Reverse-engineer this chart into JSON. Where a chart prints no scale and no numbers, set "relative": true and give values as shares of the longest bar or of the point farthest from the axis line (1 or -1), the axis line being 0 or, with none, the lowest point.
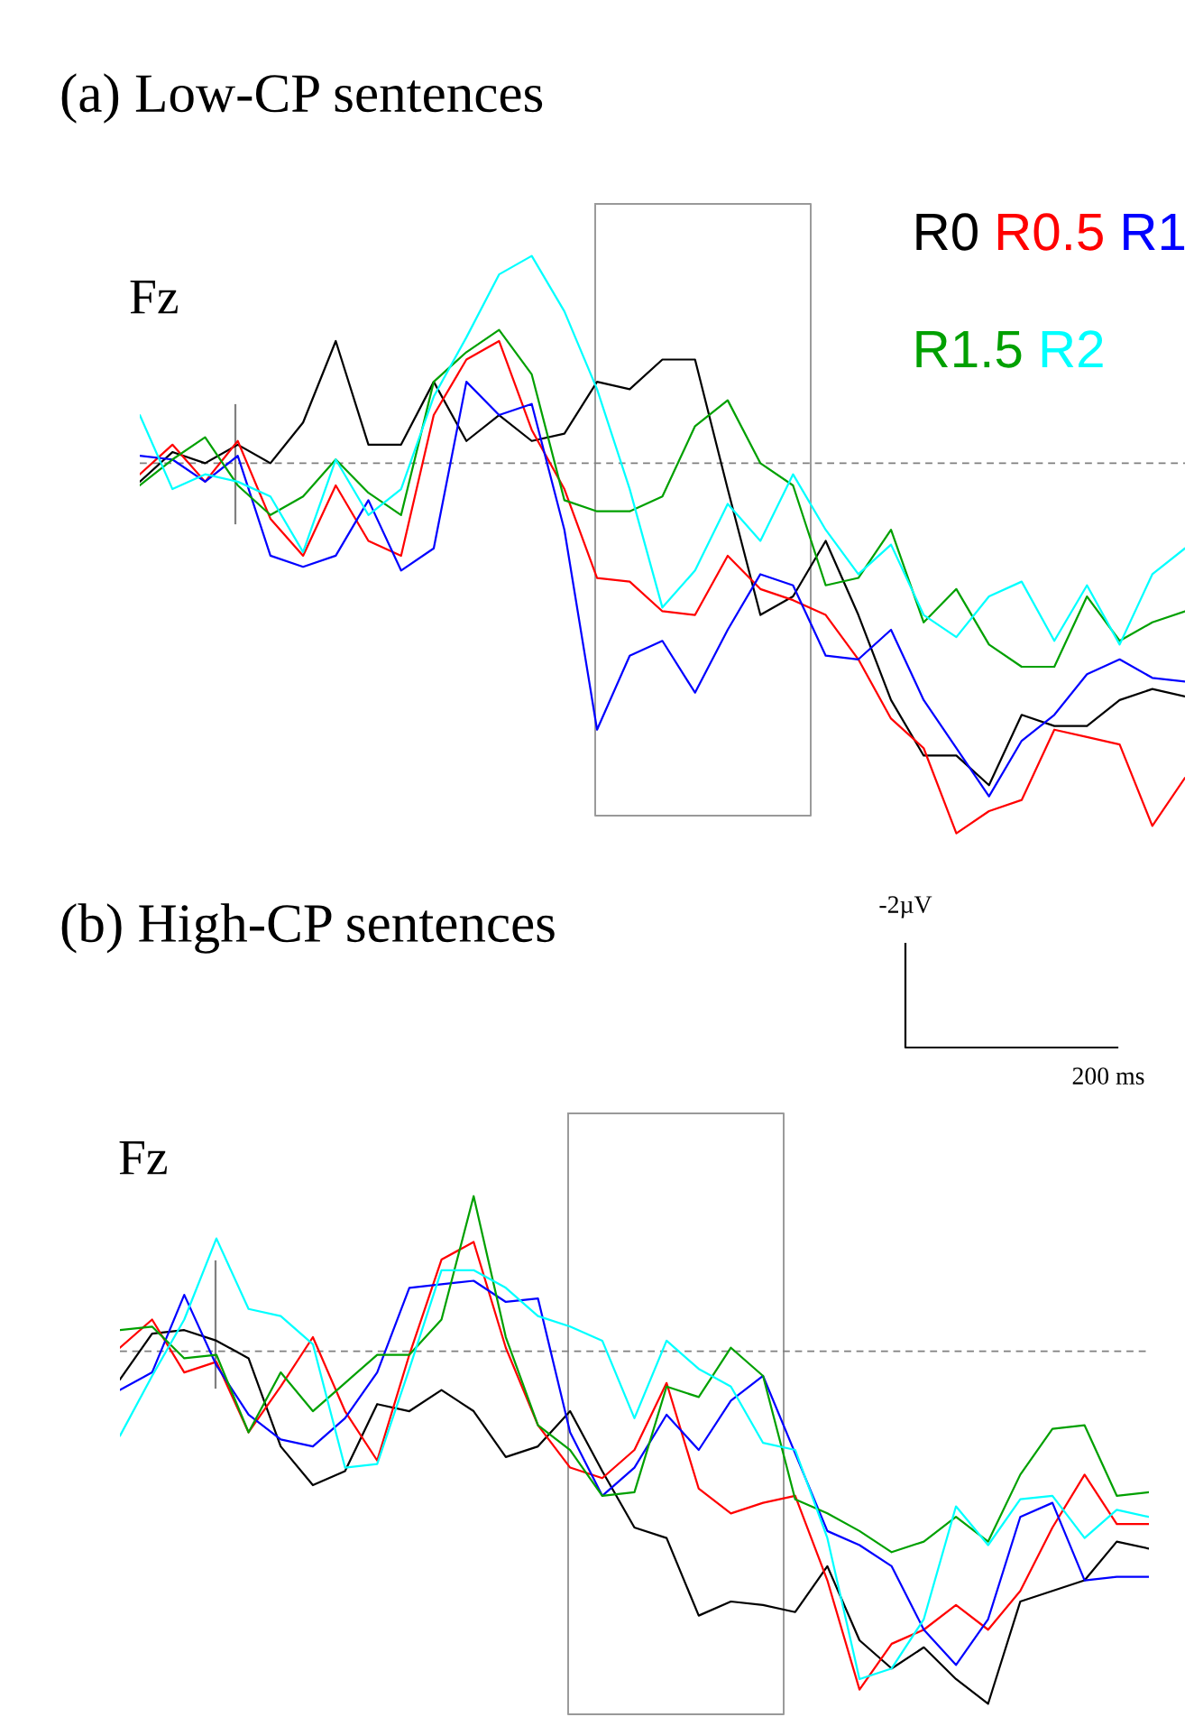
{
  "chart_data": [
    {
      "type": "line",
      "title": "(a) Low-CP sentences",
      "relative": true,
      "categories": [
        null,
        null,
        null,
        null,
        null,
        null,
        null,
        null,
        null,
        null,
        null,
        null,
        null,
        null,
        null,
        null,
        null,
        null,
        null,
        null,
        null,
        null,
        null,
        null,
        null,
        null,
        null,
        null,
        null,
        null,
        null,
        null,
        null
      ],
      "series": [
        {
          "name": "R0",
          "color": "#000000",
          "values": [
            -0.05,
            0.03,
            0,
            0.05,
            0,
            0.11,
            0.33,
            0.05,
            0.05,
            0.22,
            0.06,
            0.13,
            0.06,
            0.08,
            0.22,
            0.2,
            0.28,
            0.28,
            -0.07,
            -0.41,
            -0.36,
            -0.21,
            -0.41,
            -0.64,
            -0.79,
            -0.79,
            -0.87,
            -0.68,
            -0.71,
            -0.71,
            -0.64,
            -0.61,
            -0.63
          ]
        },
        {
          "name": "R0.5",
          "color": "#ff0000",
          "values": [
            -0.03,
            0.05,
            -0.05,
            0.06,
            -0.15,
            -0.25,
            -0.06,
            -0.21,
            -0.25,
            0.13,
            0.28,
            0.33,
            0.09,
            -0.07,
            -0.31,
            -0.32,
            -0.4,
            -0.41,
            -0.25,
            -0.34,
            -0.37,
            -0.41,
            -0.53,
            -0.69,
            -0.77,
            -1,
            -0.94,
            -0.91,
            -0.72,
            -0.74,
            -0.76,
            -0.98,
            -0.85
          ]
        },
        {
          "name": "R1",
          "color": "#0000ff",
          "values": [
            0.02,
            0.01,
            -0.05,
            0.02,
            -0.25,
            -0.28,
            -0.25,
            -0.1,
            -0.29,
            -0.23,
            0.22,
            0.13,
            0.16,
            -0.18,
            -0.72,
            -0.52,
            -0.48,
            -0.62,
            -0.45,
            -0.3,
            -0.33,
            -0.52,
            -0.53,
            -0.45,
            -0.64,
            -0.77,
            -0.9,
            -0.75,
            -0.68,
            -0.57,
            -0.53,
            -0.58,
            -0.59
          ]
        },
        {
          "name": "R1.5",
          "color": "#00a000",
          "values": [
            -0.06,
            0.01,
            0.07,
            -0.06,
            -0.14,
            -0.09,
            0.01,
            -0.08,
            -0.14,
            0.22,
            0.3,
            0.36,
            0.24,
            -0.1,
            -0.13,
            -0.13,
            -0.09,
            0.1,
            0.17,
            0,
            -0.06,
            -0.33,
            -0.31,
            -0.18,
            -0.43,
            -0.34,
            -0.49,
            -0.55,
            -0.55,
            -0.36,
            -0.48,
            -0.43,
            -0.4
          ]
        },
        {
          "name": "R2",
          "color": "#00ffff",
          "values": [
            0.13,
            -0.07,
            -0.03,
            -0.05,
            -0.09,
            -0.24,
            0.01,
            -0.14,
            -0.07,
            0.18,
            0.34,
            0.51,
            0.56,
            0.41,
            0.2,
            -0.07,
            -0.39,
            -0.29,
            -0.11,
            -0.21,
            -0.03,
            -0.18,
            -0.3,
            -0.22,
            -0.41,
            -0.47,
            -0.36,
            -0.32,
            -0.48,
            -0.33,
            -0.49,
            -0.3,
            -0.23
          ]
        }
      ],
      "ref_lines": [
        {
          "axis": "y",
          "value": 0,
          "color": "#808080",
          "line_style": "dashed"
        }
      ],
      "annotations": [
        "Fz"
      ]
    },
    {
      "type": "line",
      "title": "(b) High-CP sentences",
      "relative": true,
      "categories": [
        null,
        null,
        null,
        null,
        null,
        null,
        null,
        null,
        null,
        null,
        null,
        null,
        null,
        null,
        null,
        null,
        null,
        null,
        null,
        null,
        null,
        null,
        null,
        null,
        null,
        null,
        null,
        null,
        null,
        null,
        null,
        null,
        null
      ],
      "series": [
        {
          "color": "#000000",
          "values": [
            -0.08,
            0.05,
            0.06,
            0.03,
            -0.02,
            -0.27,
            -0.38,
            -0.34,
            -0.15,
            -0.17,
            -0.11,
            -0.17,
            -0.3,
            -0.27,
            -0.17,
            -0.34,
            -0.5,
            -0.53,
            -0.75,
            -0.71,
            -0.72,
            -0.74,
            -0.61,
            -0.82,
            -0.9,
            -0.84,
            -0.93,
            -1,
            -0.71,
            -0.68,
            -0.65,
            -0.54,
            -0.56
          ]
        },
        {
          "color": "#ff0000",
          "values": [
            0.01,
            0.09,
            -0.06,
            -0.03,
            -0.23,
            -0.1,
            0.04,
            -0.17,
            -0.31,
            -0.01,
            0.26,
            0.31,
            0.01,
            -0.21,
            -0.33,
            -0.36,
            -0.28,
            -0.09,
            -0.39,
            -0.46,
            -0.43,
            -0.41,
            -0.65,
            -0.96,
            -0.83,
            -0.79,
            -0.72,
            -0.79,
            -0.68,
            -0.5,
            -0.35,
            -0.49,
            -0.49
          ]
        },
        {
          "color": "#0000ff",
          "values": [
            -0.11,
            -0.06,
            0.16,
            -0.04,
            -0.18,
            -0.25,
            -0.27,
            -0.19,
            -0.06,
            0.18,
            0.19,
            0.2,
            0.14,
            0.15,
            -0.23,
            -0.41,
            -0.33,
            -0.18,
            -0.28,
            -0.14,
            -0.07,
            -0.29,
            -0.51,
            -0.55,
            -0.61,
            -0.79,
            -0.89,
            -0.76,
            -0.47,
            -0.43,
            -0.65,
            -0.64,
            -0.64
          ]
        },
        {
          "color": "#00a000",
          "values": [
            0.06,
            0.07,
            -0.02,
            -0.01,
            -0.23,
            -0.06,
            -0.17,
            -0.09,
            -0.01,
            -0.01,
            0.09,
            0.44,
            0.04,
            -0.21,
            -0.28,
            -0.41,
            -0.4,
            -0.1,
            -0.13,
            0.01,
            -0.07,
            -0.42,
            -0.46,
            -0.51,
            -0.57,
            -0.54,
            -0.47,
            -0.54,
            -0.35,
            -0.22,
            -0.21,
            -0.41,
            -0.4
          ]
        },
        {
          "color": "#00ffff",
          "values": [
            -0.24,
            -0.07,
            0.09,
            0.32,
            0.12,
            0.1,
            0.02,
            -0.33,
            -0.32,
            -0.05,
            0.23,
            0.23,
            0.18,
            0.1,
            0.07,
            0.03,
            -0.19,
            0.03,
            -0.05,
            -0.1,
            -0.26,
            -0.28,
            -0.53,
            -0.93,
            -0.9,
            -0.76,
            -0.44,
            -0.55,
            -0.42,
            -0.41,
            -0.53,
            -0.45,
            -0.47
          ]
        }
      ],
      "ref_lines": [
        {
          "axis": "y",
          "value": 0,
          "color": "#808080",
          "line_style": "dashed"
        }
      ],
      "annotations": [
        "Fz",
        "-2µV",
        "200 ms"
      ]
    }
  ]
}
